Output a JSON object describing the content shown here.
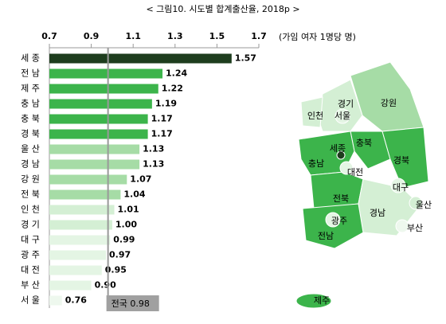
{
  "chart_data": {
    "type": "bar",
    "orientation": "horizontal",
    "title": "< 그림10. 시도별 합계출산율, 2018p >",
    "unit": "(가임 여자 1명당 명)",
    "categories": [
      "세 종",
      "전 남",
      "제 주",
      "충 남",
      "충 북",
      "경 북",
      "울 산",
      "경 남",
      "강 원",
      "전 북",
      "인 천",
      "경 기",
      "대 구",
      "광 주",
      "대 전",
      "부 산",
      "서 울"
    ],
    "values": [
      1.57,
      1.24,
      1.22,
      1.19,
      1.17,
      1.17,
      1.13,
      1.13,
      1.07,
      1.04,
      1.01,
      1.0,
      0.99,
      0.97,
      0.95,
      0.9,
      0.76
    ],
    "value_labels": [
      "1.57",
      "1.24",
      "1.22",
      "1.19",
      "1.17",
      "1.17",
      "1.13",
      "1.13",
      "1.07",
      "1.04",
      "1.01",
      "1.00",
      "0.99",
      "0.97",
      "0.95",
      "0.90",
      "0.76"
    ],
    "colors": [
      "#1e3d1e",
      "#3cb44b",
      "#3cb44b",
      "#3cb44b",
      "#3cb44b",
      "#3cb44b",
      "#a6dca6",
      "#a6dca6",
      "#a6dca6",
      "#a6dca6",
      "#d4efd4",
      "#d4efd4",
      "#e4f5e4",
      "#e4f5e4",
      "#e4f5e4",
      "#e4f5e4",
      "#eef8ee"
    ],
    "xlim": [
      0.7,
      1.7
    ],
    "xticks": [
      0.7,
      0.9,
      1.1,
      1.3,
      1.5,
      1.7
    ],
    "reference": {
      "value": 0.98,
      "label": "전국 0.98"
    }
  },
  "map": {
    "labels": [
      "경기",
      "서울",
      "강원",
      "인천",
      "세종",
      "충북",
      "충남",
      "대전",
      "경북",
      "대구",
      "전북",
      "울산",
      "광주",
      "경남",
      "부산",
      "전남",
      "제주"
    ]
  }
}
